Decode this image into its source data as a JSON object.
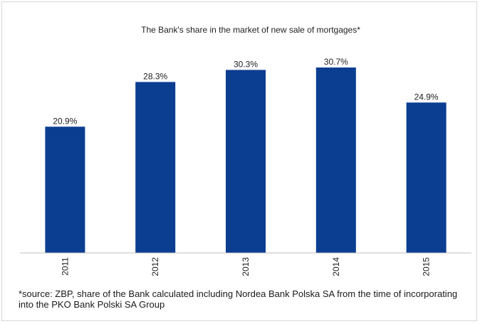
{
  "chart_data": {
    "type": "bar",
    "title": "The Bank's share in the market of new sale of mortgages*",
    "categories": [
      "2011",
      "2012",
      "2013",
      "2014",
      "2015"
    ],
    "values": [
      20.9,
      28.3,
      30.3,
      30.7,
      24.9
    ],
    "value_labels": [
      "20.9%",
      "28.3%",
      "30.3%",
      "30.7%",
      "24.9%"
    ],
    "ylim": [
      0,
      33.4
    ],
    "grid": false,
    "legend": "none",
    "bar_color": "#0b3d91"
  },
  "footnote": "*source: ZBP, share of the Bank calculated including Nordea Bank Polska SA from the time of incorporating into the PKO Bank Polski SA Group"
}
